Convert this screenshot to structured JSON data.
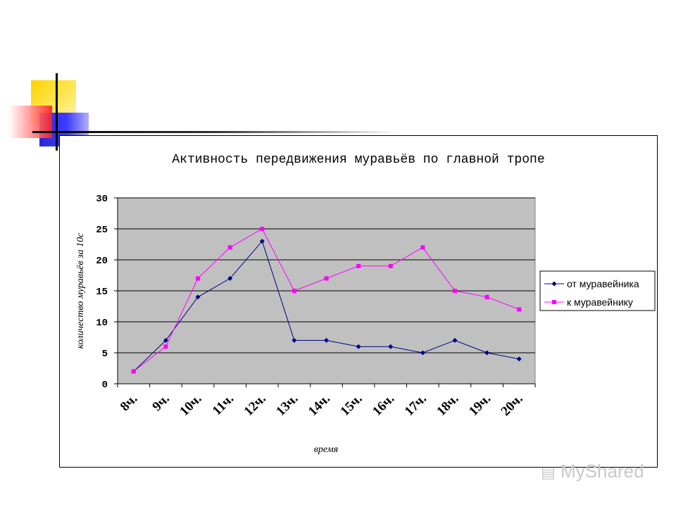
{
  "chart_data": {
    "type": "line",
    "title": "Активность передвижения муравьёв по главной тропе",
    "xlabel": "время",
    "ylabel": "количество муравьёв за 10с",
    "categories": [
      "8ч.",
      "9ч.",
      "10ч.",
      "11ч.",
      "12ч.",
      "13ч.",
      "14ч.",
      "15ч.",
      "16ч.",
      "17ч.",
      "18ч.",
      "19ч.",
      "20ч."
    ],
    "y_ticks": [
      "0",
      "5",
      "10",
      "15",
      "20",
      "25",
      "30"
    ],
    "ylim": [
      0,
      30
    ],
    "grid": true,
    "legend_position": "right",
    "plot_background": "#c0c0c0",
    "series": [
      {
        "name": "от муравейника",
        "color": "#000080",
        "marker": "diamond",
        "values": [
          2,
          7,
          14,
          17,
          23,
          7,
          7,
          6,
          6,
          5,
          7,
          5,
          4
        ]
      },
      {
        "name": "к муравейнику",
        "color": "#ff00ff",
        "marker": "square",
        "values": [
          2,
          6,
          17,
          22,
          25,
          15,
          17,
          19,
          19,
          22,
          15,
          14,
          12
        ]
      }
    ]
  },
  "watermark": {
    "text": "MyShared",
    "icon": "presentation-board-icon"
  }
}
